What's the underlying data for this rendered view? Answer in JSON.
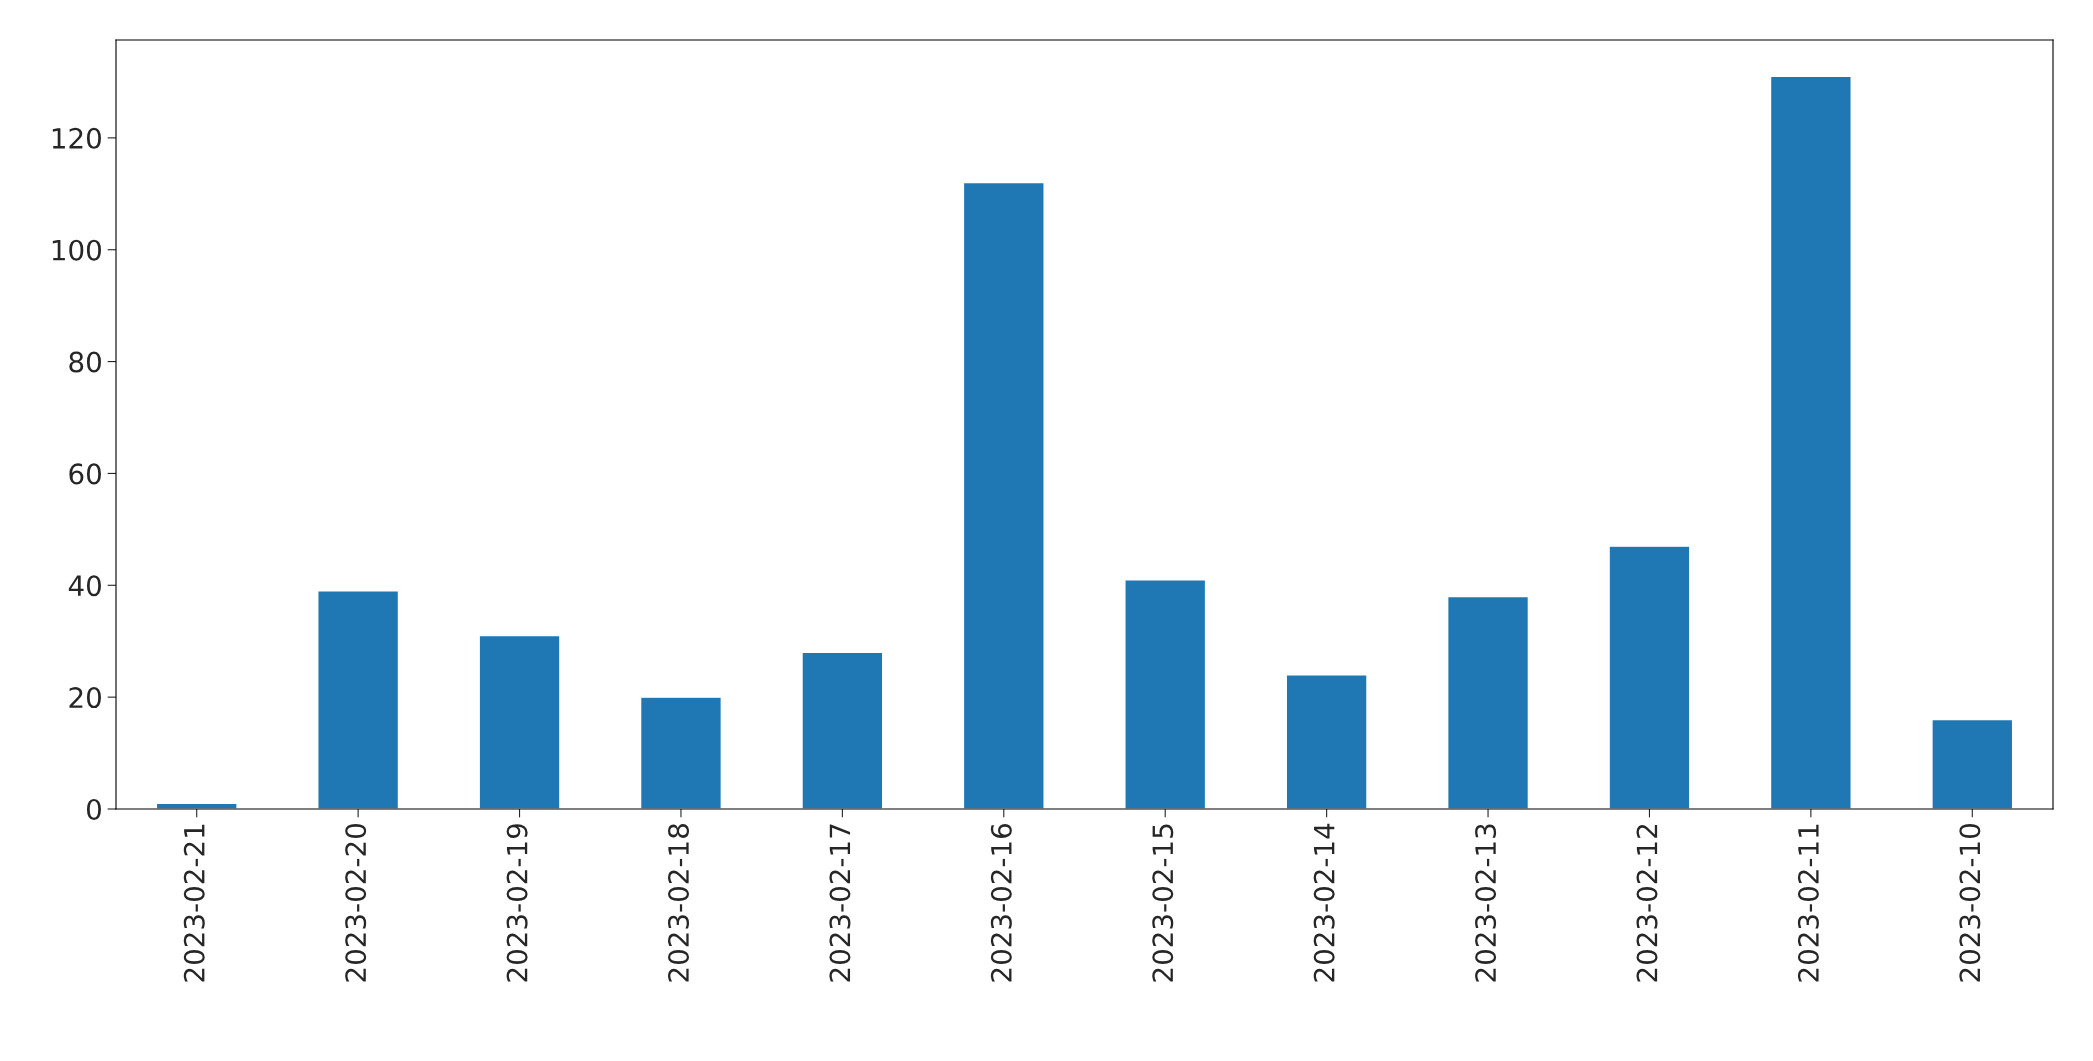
{
  "chart_data": {
    "type": "bar",
    "categories": [
      "2023-02-21",
      "2023-02-20",
      "2023-02-19",
      "2023-02-18",
      "2023-02-17",
      "2023-02-16",
      "2023-02-15",
      "2023-02-14",
      "2023-02-13",
      "2023-02-12",
      "2023-02-11",
      "2023-02-10"
    ],
    "values": [
      1,
      39,
      31,
      20,
      28,
      112,
      41,
      24,
      38,
      47,
      131,
      16
    ],
    "color": "#1f77b4",
    "ylim": [
      0,
      137.5
    ],
    "yticks": [
      0,
      20,
      40,
      60,
      80,
      100,
      120
    ],
    "grid": false
  }
}
